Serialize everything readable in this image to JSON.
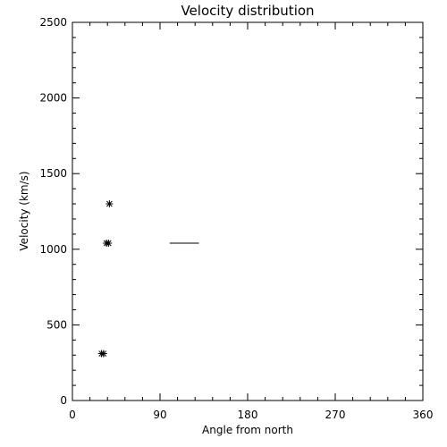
{
  "chart_data": {
    "type": "scatter",
    "title": "Velocity distribution",
    "xlabel": "Angle from north",
    "ylabel": "Velocity (km/s)",
    "xlim": [
      0,
      360
    ],
    "ylim": [
      0,
      2500
    ],
    "xticks": [
      "0",
      "90",
      "180",
      "270",
      "360"
    ],
    "yticks": [
      "0",
      "500",
      "1000",
      "1500",
      "2000",
      "2500"
    ],
    "grid": false,
    "marker": "asterisk",
    "points": [
      {
        "x": 38,
        "y": 1300
      },
      {
        "x": 35,
        "y": 1040
      },
      {
        "x": 37,
        "y": 1040
      },
      {
        "x": 30,
        "y": 310
      },
      {
        "x": 32,
        "y": 310
      }
    ],
    "segments": [
      {
        "x1": 100,
        "x2": 130,
        "y": 1040
      }
    ],
    "colors": {
      "foreground": "#000000",
      "background": "#ffffff"
    }
  }
}
